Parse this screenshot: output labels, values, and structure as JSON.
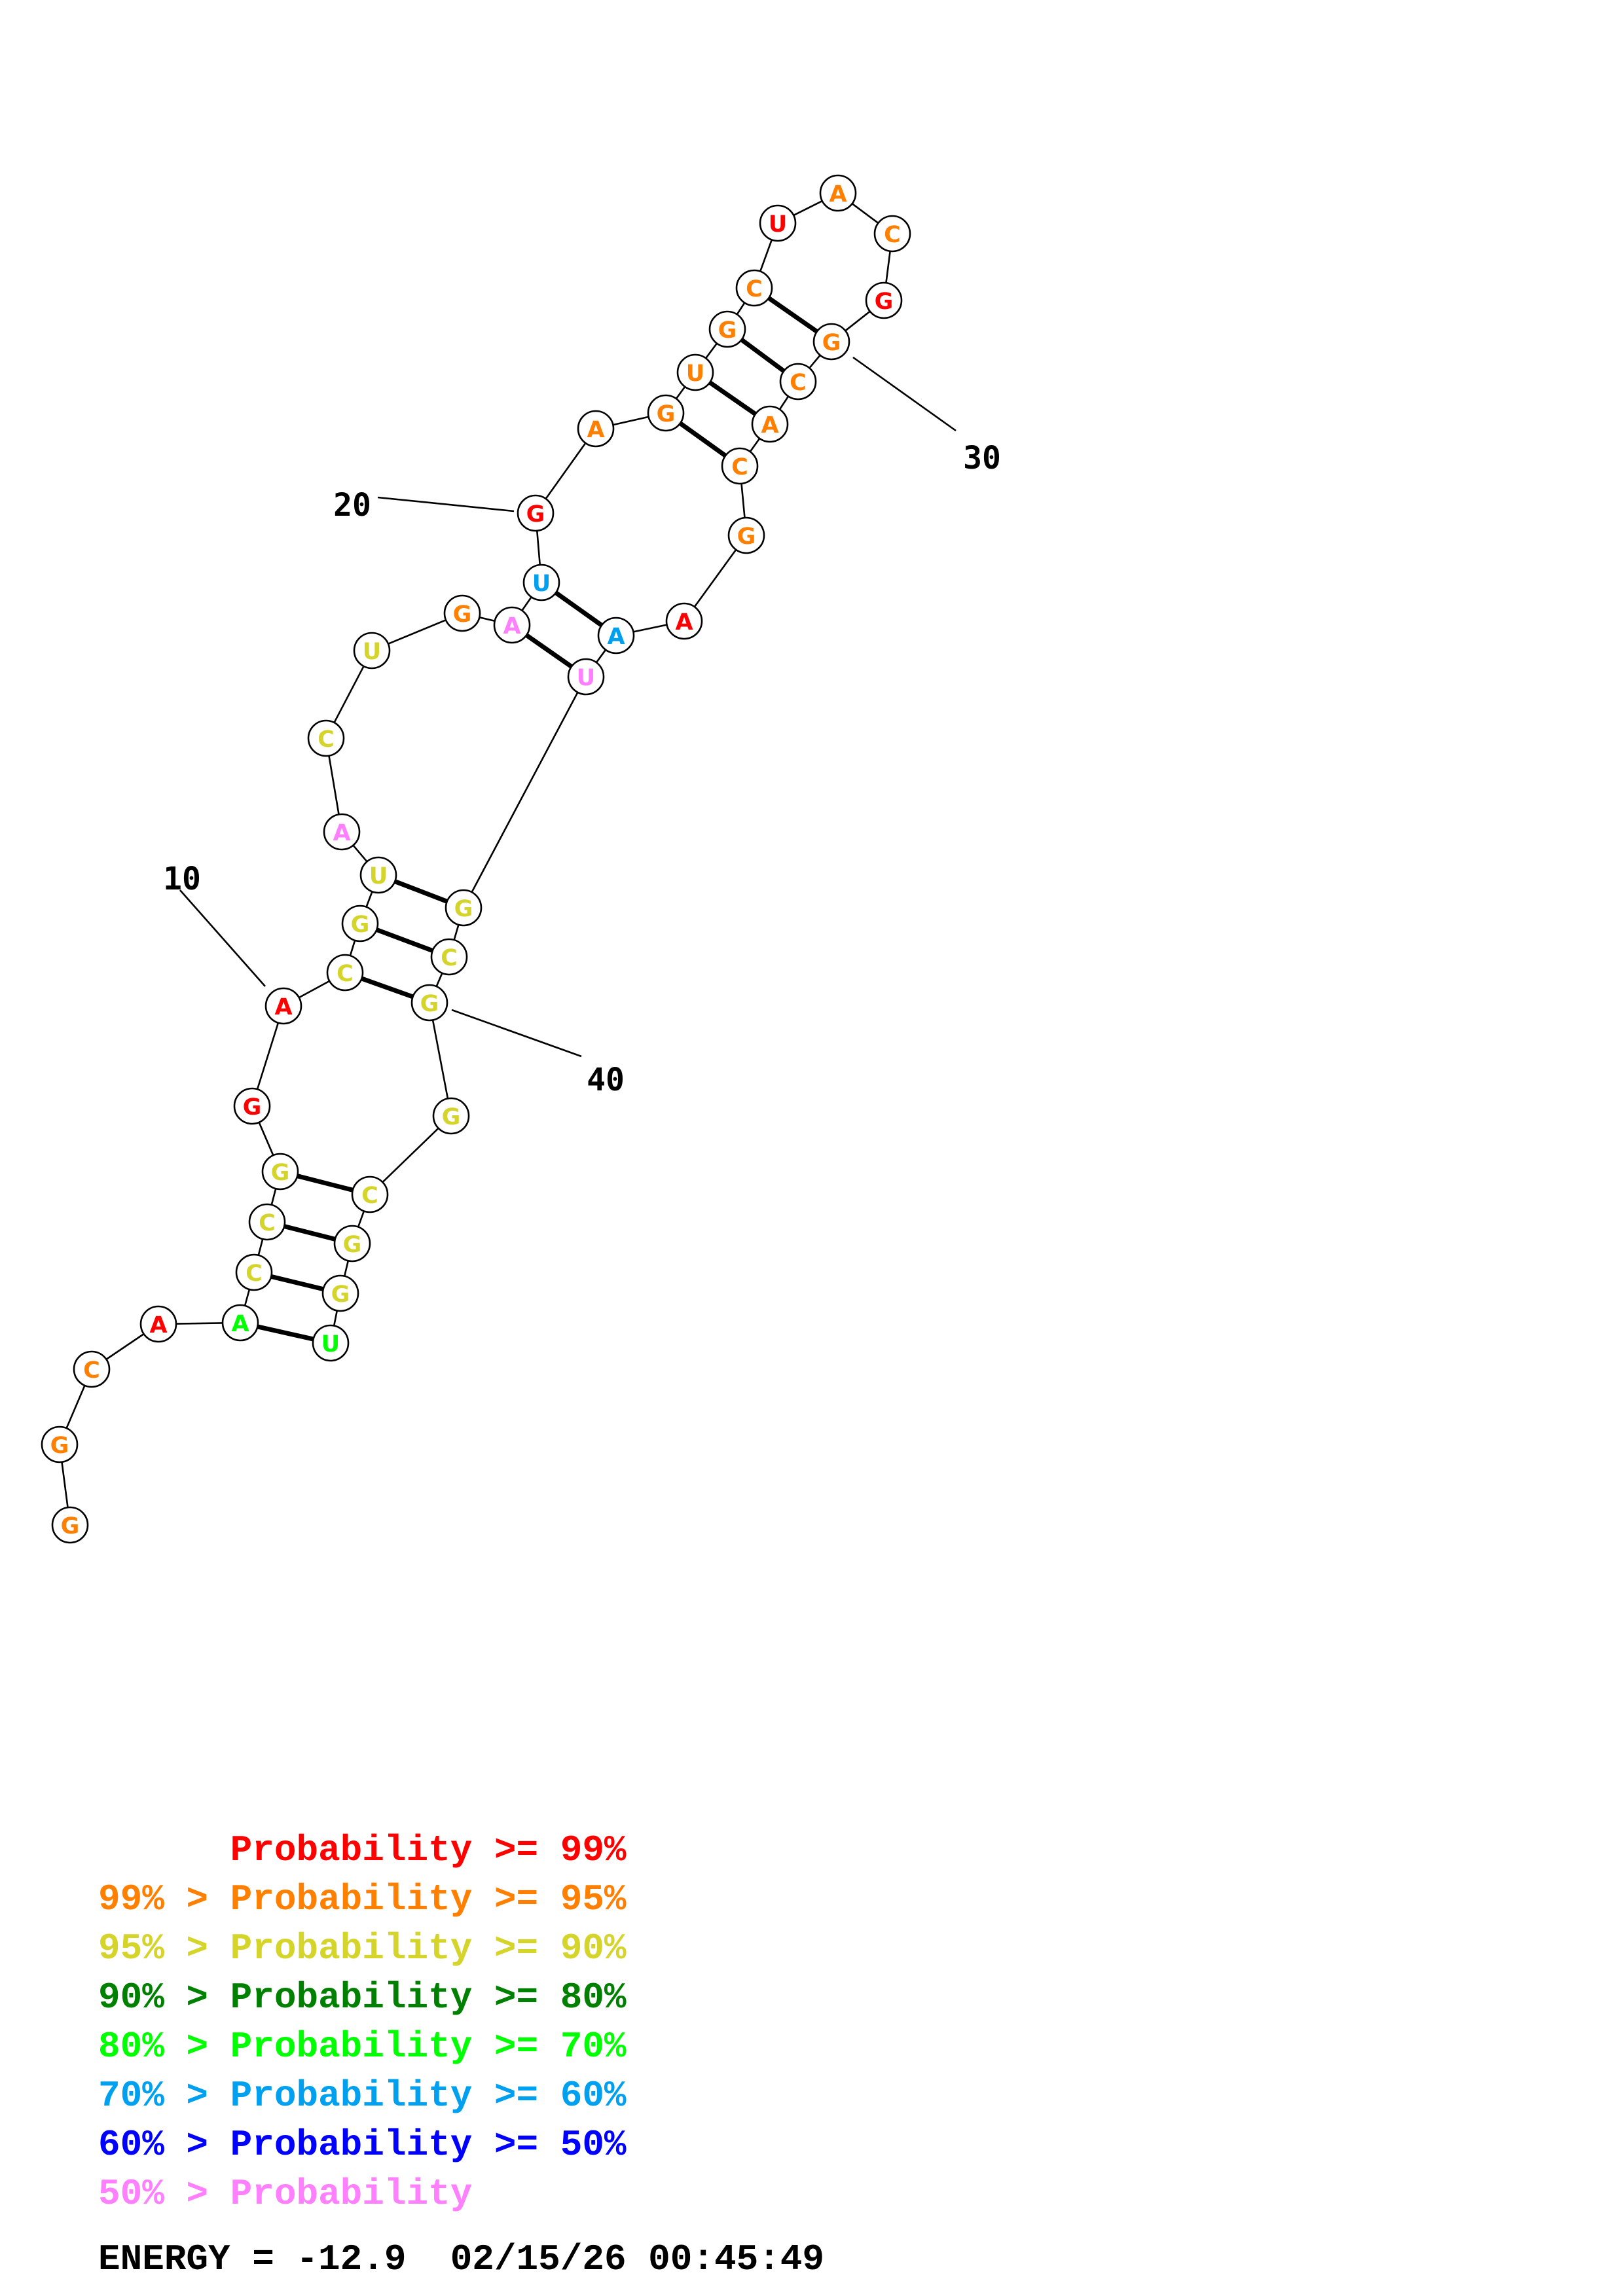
{
  "colors": {
    "p99": "#ff0000",
    "p95": "#ff8000",
    "p90": "#d4d42a",
    "p80": "#008000",
    "p70": "#00ff00",
    "p60": "#00a0f0",
    "p50": "#0000ff",
    "plt50": "#ff80ff"
  },
  "nucleotides": [
    {
      "i": 1,
      "base": "G",
      "color": "p95"
    },
    {
      "i": 2,
      "base": "G",
      "color": "p95"
    },
    {
      "i": 3,
      "base": "C",
      "color": "p95"
    },
    {
      "i": 4,
      "base": "A",
      "color": "p99"
    },
    {
      "i": 5,
      "base": "A",
      "color": "p70"
    },
    {
      "i": 6,
      "base": "C",
      "color": "p90"
    },
    {
      "i": 7,
      "base": "C",
      "color": "p90"
    },
    {
      "i": 8,
      "base": "G",
      "color": "p90"
    },
    {
      "i": 9,
      "base": "G",
      "color": "p99"
    },
    {
      "i": 10,
      "base": "A",
      "color": "p99"
    },
    {
      "i": 11,
      "base": "C",
      "color": "p90"
    },
    {
      "i": 12,
      "base": "G",
      "color": "p90"
    },
    {
      "i": 13,
      "base": "U",
      "color": "p90"
    },
    {
      "i": 14,
      "base": "A",
      "color": "plt50"
    },
    {
      "i": 15,
      "base": "C",
      "color": "p90"
    },
    {
      "i": 16,
      "base": "U",
      "color": "p90"
    },
    {
      "i": 17,
      "base": "G",
      "color": "p95"
    },
    {
      "i": 18,
      "base": "A",
      "color": "plt50"
    },
    {
      "i": 19,
      "base": "U",
      "color": "p60"
    },
    {
      "i": 20,
      "base": "G",
      "color": "p99"
    },
    {
      "i": 21,
      "base": "A",
      "color": "p95"
    },
    {
      "i": 22,
      "base": "G",
      "color": "p95"
    },
    {
      "i": 23,
      "base": "U",
      "color": "p95"
    },
    {
      "i": 24,
      "base": "G",
      "color": "p95"
    },
    {
      "i": 25,
      "base": "C",
      "color": "p95"
    },
    {
      "i": 26,
      "base": "U",
      "color": "p99"
    },
    {
      "i": 27,
      "base": "A",
      "color": "p95"
    },
    {
      "i": 28,
      "base": "C",
      "color": "p95"
    },
    {
      "i": 29,
      "base": "G",
      "color": "p99"
    },
    {
      "i": 30,
      "base": "G",
      "color": "p95"
    },
    {
      "i": 31,
      "base": "C",
      "color": "p95"
    },
    {
      "i": 32,
      "base": "A",
      "color": "p95"
    },
    {
      "i": 33,
      "base": "C",
      "color": "p95"
    },
    {
      "i": 34,
      "base": "G",
      "color": "p95"
    },
    {
      "i": 35,
      "base": "A",
      "color": "p99"
    },
    {
      "i": 36,
      "base": "A",
      "color": "p60"
    },
    {
      "i": 37,
      "base": "U",
      "color": "plt50"
    },
    {
      "i": 38,
      "base": "G",
      "color": "p90"
    },
    {
      "i": 39,
      "base": "C",
      "color": "p90"
    },
    {
      "i": 40,
      "base": "G",
      "color": "p90"
    },
    {
      "i": 41,
      "base": "G",
      "color": "p90"
    },
    {
      "i": 42,
      "base": "C",
      "color": "p90"
    },
    {
      "i": 43,
      "base": "G",
      "color": "p90"
    },
    {
      "i": 44,
      "base": "G",
      "color": "p90"
    },
    {
      "i": 45,
      "base": "U",
      "color": "p70"
    }
  ],
  "base_pairs": [
    [
      5,
      45
    ],
    [
      6,
      44
    ],
    [
      7,
      43
    ],
    [
      8,
      42
    ],
    [
      11,
      40
    ],
    [
      12,
      39
    ],
    [
      13,
      38
    ],
    [
      18,
      37
    ],
    [
      19,
      36
    ],
    [
      22,
      33
    ],
    [
      23,
      32
    ],
    [
      24,
      31
    ],
    [
      25,
      30
    ]
  ],
  "position_labels": [
    {
      "index": 10,
      "text": "10"
    },
    {
      "index": 20,
      "text": "20"
    },
    {
      "index": 30,
      "text": "30"
    },
    {
      "index": 40,
      "text": "40"
    }
  ],
  "legend": [
    {
      "prefix": "",
      "label": "Probability >= 99%",
      "color": "p99"
    },
    {
      "prefix": "99% > ",
      "label": "Probability >= 95%",
      "color": "p95"
    },
    {
      "prefix": "95% > ",
      "label": "Probability >= 90%",
      "color": "p90"
    },
    {
      "prefix": "90% > ",
      "label": "Probability >= 80%",
      "color": "p80"
    },
    {
      "prefix": "80% > ",
      "label": "Probability >= 70%",
      "color": "p70"
    },
    {
      "prefix": "70% > ",
      "label": "Probability >= 60%",
      "color": "p60"
    },
    {
      "prefix": "60% > ",
      "label": "Probability >= 50%",
      "color": "p50"
    },
    {
      "prefix": "50% > ",
      "label": "Probability",
      "color": "plt50"
    }
  ],
  "footer": {
    "energy_label": "ENERGY = ",
    "energy_value": "-12.9",
    "timestamp": "02/15/26 00:45:49"
  }
}
